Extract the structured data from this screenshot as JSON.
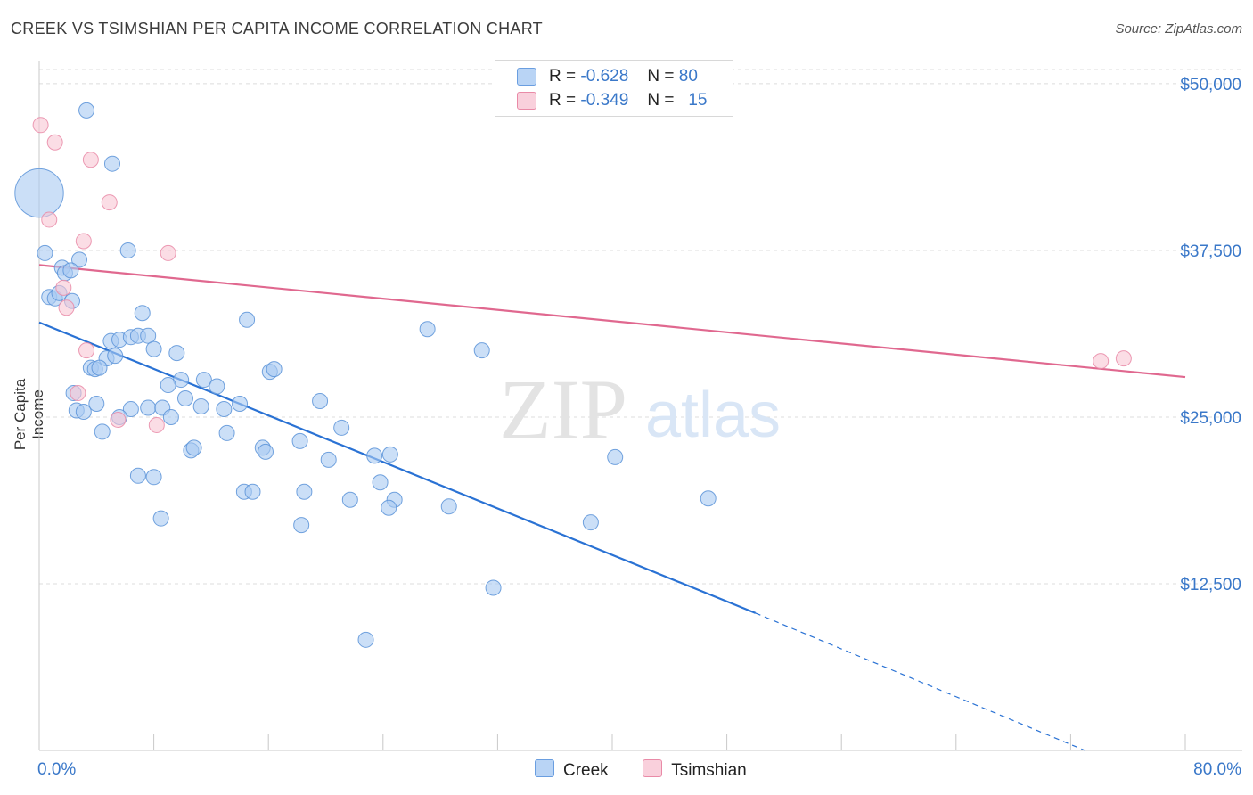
{
  "header": {
    "title": "CREEK VS TSIMSHIAN PER CAPITA INCOME CORRELATION CHART",
    "source": "Source: ZipAtlas.com"
  },
  "watermark": {
    "zip": "ZIP",
    "atlas": "atlas"
  },
  "legend_top": {
    "r_label": "R =",
    "n_label": "N =",
    "rows": [
      {
        "r": "-0.628",
        "n": "80"
      },
      {
        "r": "-0.349",
        "n": "15"
      }
    ]
  },
  "chart_data": {
    "type": "scatter",
    "title": "CREEK VS TSIMSHIAN PER CAPITA INCOME CORRELATION CHART",
    "xlabel": "",
    "ylabel": "Per Capita Income",
    "xlim": [
      0,
      80
    ],
    "ylim": [
      0,
      52000
    ],
    "x_tick_labels": [
      "0.0%",
      "80.0%"
    ],
    "y_ticks": [
      12500,
      25000,
      37500,
      50000
    ],
    "y_tick_labels": [
      "$12,500",
      "$25,000",
      "$37,500",
      "$50,000"
    ],
    "grid": true,
    "legend_position": "bottom",
    "colors": {
      "creek_fill": "#a9c9f2",
      "creek_stroke": "#5b93d8",
      "creek_line": "#2a72d4",
      "tsimshian_fill": "#f8c6d4",
      "tsimshian_stroke": "#e98aa7",
      "tsimshian_line": "#e0688f",
      "tick_label": "#3a78c9"
    },
    "series": [
      {
        "name": "Creek",
        "points": [
          [
            0.0,
            41800,
            3.2
          ],
          [
            3.3,
            48000,
            1
          ],
          [
            5.1,
            44000,
            1
          ],
          [
            0.4,
            37300,
            1
          ],
          [
            2.8,
            36800,
            1
          ],
          [
            6.2,
            37500,
            1
          ],
          [
            1.6,
            36200,
            1
          ],
          [
            1.8,
            35800,
            1
          ],
          [
            2.2,
            36000,
            1
          ],
          [
            0.7,
            34000,
            1
          ],
          [
            1.1,
            33900,
            1
          ],
          [
            1.4,
            34300,
            1
          ],
          [
            2.3,
            33700,
            1
          ],
          [
            7.2,
            32800,
            1
          ],
          [
            14.5,
            32300,
            1
          ],
          [
            27.1,
            31600,
            1
          ],
          [
            5.0,
            30700,
            1
          ],
          [
            5.6,
            30800,
            1
          ],
          [
            6.4,
            31000,
            1
          ],
          [
            6.9,
            31100,
            1
          ],
          [
            7.6,
            31100,
            1
          ],
          [
            8.0,
            30100,
            1
          ],
          [
            9.6,
            29800,
            1
          ],
          [
            30.9,
            30000,
            1
          ],
          [
            4.7,
            29400,
            1
          ],
          [
            5.3,
            29600,
            1
          ],
          [
            3.6,
            28700,
            1
          ],
          [
            3.9,
            28600,
            1
          ],
          [
            4.2,
            28700,
            1
          ],
          [
            16.1,
            28400,
            1
          ],
          [
            16.4,
            28600,
            1
          ],
          [
            9.9,
            27800,
            1
          ],
          [
            11.5,
            27800,
            1
          ],
          [
            9.0,
            27400,
            1
          ],
          [
            12.4,
            27300,
            1
          ],
          [
            2.4,
            26800,
            1
          ],
          [
            10.2,
            26400,
            1
          ],
          [
            4.0,
            26000,
            1
          ],
          [
            14.0,
            26000,
            1
          ],
          [
            19.6,
            26200,
            1
          ],
          [
            2.6,
            25500,
            1
          ],
          [
            3.1,
            25400,
            1
          ],
          [
            6.4,
            25600,
            1
          ],
          [
            7.6,
            25700,
            1
          ],
          [
            8.6,
            25700,
            1
          ],
          [
            11.3,
            25800,
            1
          ],
          [
            12.9,
            25600,
            1
          ],
          [
            5.6,
            25000,
            1
          ],
          [
            9.2,
            25000,
            1
          ],
          [
            4.4,
            23900,
            1
          ],
          [
            13.1,
            23800,
            1
          ],
          [
            21.1,
            24200,
            1
          ],
          [
            18.2,
            23200,
            1
          ],
          [
            10.6,
            22500,
            1
          ],
          [
            10.8,
            22700,
            1
          ],
          [
            15.6,
            22700,
            1
          ],
          [
            15.8,
            22400,
            1
          ],
          [
            20.2,
            21800,
            1
          ],
          [
            23.4,
            22100,
            1
          ],
          [
            24.5,
            22200,
            1
          ],
          [
            40.2,
            22000,
            1
          ],
          [
            6.9,
            20600,
            1
          ],
          [
            8.0,
            20500,
            1
          ],
          [
            23.8,
            20100,
            1
          ],
          [
            14.3,
            19400,
            1
          ],
          [
            14.9,
            19400,
            1
          ],
          [
            18.5,
            19400,
            1
          ],
          [
            21.7,
            18800,
            1
          ],
          [
            24.8,
            18800,
            1
          ],
          [
            24.4,
            18200,
            1
          ],
          [
            28.6,
            18300,
            1
          ],
          [
            46.7,
            18900,
            1
          ],
          [
            8.5,
            17400,
            1
          ],
          [
            18.3,
            16900,
            1
          ],
          [
            38.5,
            17100,
            1
          ],
          [
            31.7,
            12200,
            1
          ],
          [
            22.8,
            8300,
            1
          ]
        ]
      },
      {
        "name": "Tsimshian",
        "points": [
          [
            0.1,
            46900,
            1
          ],
          [
            1.1,
            45600,
            1
          ],
          [
            3.6,
            44300,
            1
          ],
          [
            4.9,
            41100,
            1
          ],
          [
            0.7,
            39800,
            1
          ],
          [
            3.1,
            38200,
            1
          ],
          [
            9.0,
            37300,
            1
          ],
          [
            1.7,
            34700,
            1
          ],
          [
            1.9,
            33200,
            1
          ],
          [
            3.3,
            30000,
            1
          ],
          [
            2.7,
            26800,
            1
          ],
          [
            5.5,
            24800,
            1
          ],
          [
            8.2,
            24400,
            1
          ],
          [
            74.1,
            29200,
            1
          ],
          [
            75.7,
            29400,
            1
          ]
        ]
      }
    ],
    "trendlines": [
      {
        "name": "Creek",
        "from": [
          0,
          32100
        ],
        "to": [
          50,
          10300
        ],
        "dashed_to": [
          73,
          0
        ]
      },
      {
        "name": "Tsimshian",
        "from": [
          0,
          36400
        ],
        "to": [
          80,
          28000
        ]
      }
    ]
  },
  "bottom_legend": {
    "items": [
      "Creek",
      "Tsimshian"
    ]
  }
}
